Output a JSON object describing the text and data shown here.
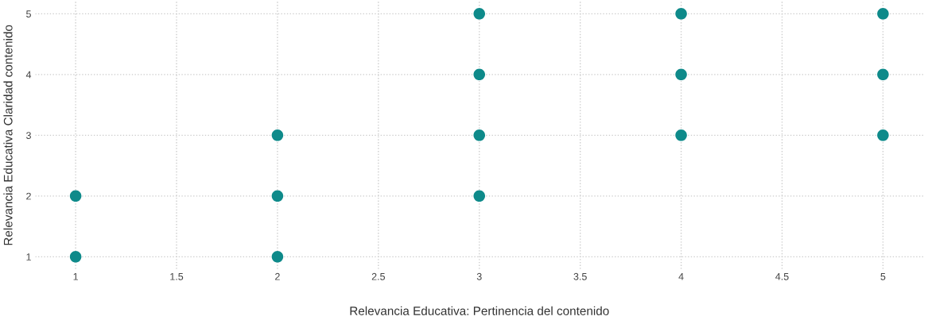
{
  "chart_data": {
    "type": "scatter",
    "xlabel": "Relevancia Educativa: Pertinencia del contenido",
    "ylabel": "Relevancia Educativa Claridad contenido",
    "x": [
      1,
      1,
      2,
      2,
      2,
      3,
      3,
      3,
      3,
      4,
      4,
      4,
      5,
      5,
      5
    ],
    "series": [
      {
        "color": "#0e8a8a",
        "values": [
          1,
          2,
          1,
          2,
          3,
          2,
          3,
          4,
          5,
          3,
          4,
          5,
          3,
          4,
          5
        ]
      }
    ],
    "xlim": [
      0.8,
      5.2
    ],
    "ylim": [
      0.8,
      5.2
    ],
    "xticks": [
      1,
      1.5,
      2,
      2.5,
      3,
      3.5,
      4,
      4.5,
      5
    ],
    "yticks": [
      1,
      2,
      3,
      4,
      5
    ],
    "grid": true,
    "marker": "circle"
  }
}
